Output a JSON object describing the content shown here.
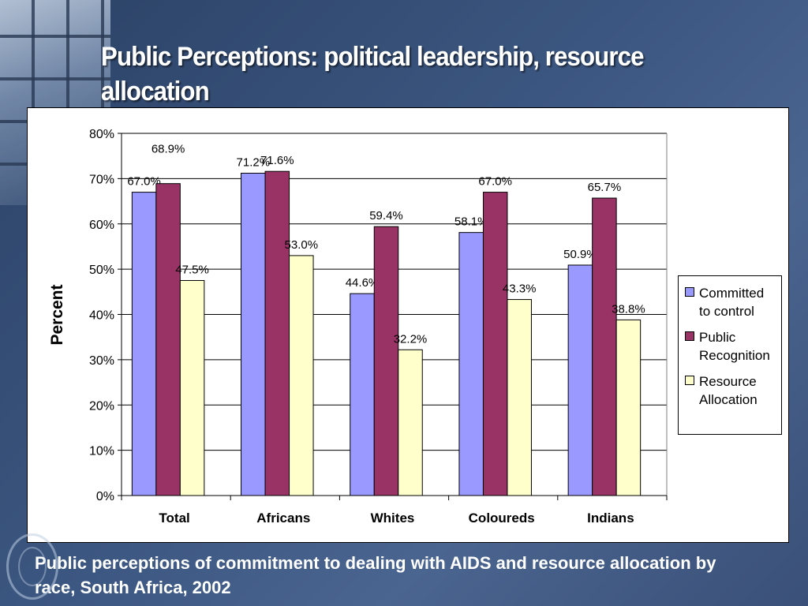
{
  "slide": {
    "title": "Public Perceptions: political leadership, resource allocation",
    "caption": "Public perceptions of commitment to dealing with AIDS and resource allocation by race, South Africa, 2002"
  },
  "chart_data": {
    "type": "bar",
    "categories": [
      "Total",
      "Africans",
      "Whites",
      "Coloureds",
      "Indians"
    ],
    "series": [
      {
        "name": "Committed to control",
        "color": "#9999ff",
        "values": [
          67.0,
          71.2,
          44.6,
          58.1,
          50.9
        ],
        "labels": [
          "67.0%",
          "71.2%",
          "44.6%",
          "58.1%",
          "50.9%"
        ]
      },
      {
        "name": "Public Recognition",
        "color": "#993366",
        "values": [
          68.9,
          71.6,
          59.4,
          67.0,
          65.7
        ],
        "labels": [
          "68.9%",
          "71.6%",
          "59.4%",
          "67.0%",
          "65.7%"
        ]
      },
      {
        "name": "Resource Allocation",
        "color": "#ffffcc",
        "values": [
          47.5,
          53.0,
          32.2,
          43.3,
          38.8
        ],
        "labels": [
          "47.5%",
          "53.0%",
          "32.2%",
          "43.3%",
          "38.8%"
        ]
      }
    ],
    "ylabel": "Percent",
    "xlabel": "",
    "ylim": [
      0,
      80
    ],
    "yticks": [
      "0%",
      "10%",
      "20%",
      "30%",
      "40%",
      "50%",
      "60%",
      "70%",
      "80%"
    ],
    "grid": true,
    "legend": "right"
  }
}
